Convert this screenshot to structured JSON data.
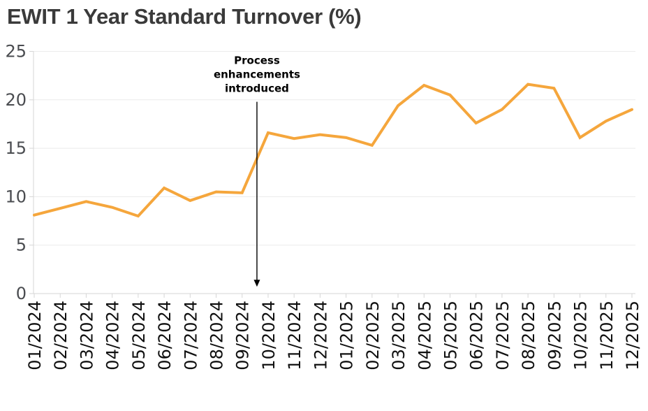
{
  "page": {
    "background_color": "#ffffff"
  },
  "chart_data": {
    "type": "line",
    "title": "EWIT 1 Year Standard Turnover (%)",
    "title_color": "#3a3a3a",
    "x": [
      "01/2024",
      "02/2024",
      "03/2024",
      "04/2024",
      "05/2024",
      "06/2024",
      "07/2024",
      "08/2024",
      "09/2024",
      "10/2024",
      "11/2024",
      "12/2024",
      "01/2025",
      "02/2025",
      "03/2025",
      "04/2025",
      "05/2025",
      "06/2025",
      "07/2025",
      "08/2025",
      "09/2025",
      "10/2025",
      "11/2025",
      "12/2025"
    ],
    "series": [
      {
        "name": "EWIT 1 Year Standard Turnover (%)",
        "color": "#F5A63C",
        "values": [
          8.1,
          8.8,
          9.5,
          8.9,
          8.0,
          10.9,
          9.6,
          10.5,
          10.4,
          16.6,
          16.0,
          16.4,
          16.1,
          15.3,
          19.4,
          21.5,
          20.5,
          17.6,
          19.0,
          21.6,
          21.2,
          16.1,
          17.8,
          19.0
        ]
      }
    ],
    "xlabel": "",
    "ylabel": "",
    "ylim": [
      0,
      25
    ],
    "yticks": [
      0,
      5,
      10,
      15,
      20,
      25
    ],
    "xtick_rotation": -90,
    "grid": "horizontal",
    "legend": "none",
    "grid_color": "#ebebeb",
    "axis_color": "#d6d6d6",
    "ytick_label_color": "#4a4c50",
    "xtick_label_color": "#101010",
    "annotation": {
      "text_lines": [
        "Process",
        "enhancements",
        "introduced"
      ],
      "color": "#000000",
      "x_index": 8.57,
      "position_note": "between 09/2024 and 10/2024",
      "arrow_top_value": 19.8,
      "arrow_tip_value": 0.7
    }
  }
}
